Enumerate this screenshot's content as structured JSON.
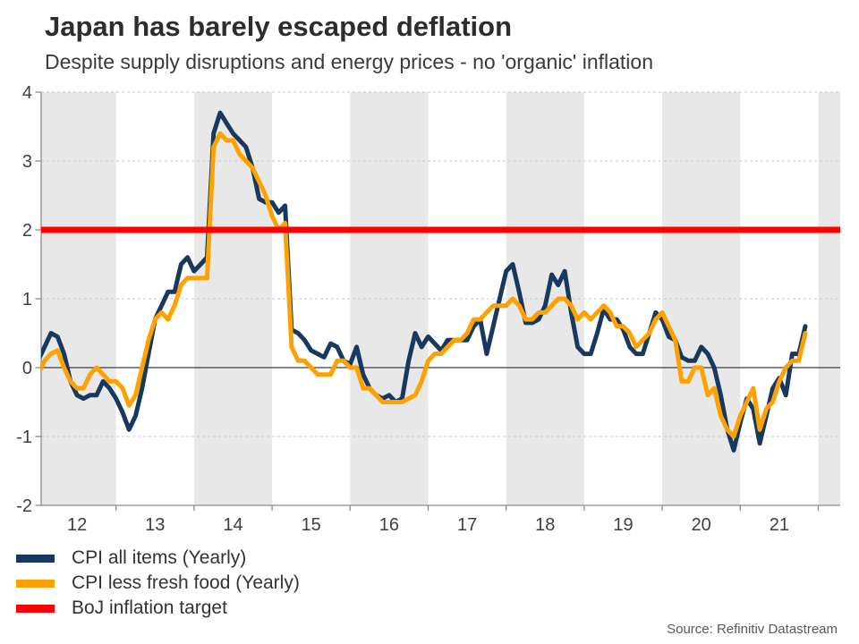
{
  "header": {
    "title": "Japan has barely escaped deflation",
    "subtitle": "Despite supply disruptions and energy prices - no 'organic' inflation"
  },
  "source": "Source: Refinitiv Datastream",
  "legend": [
    {
      "label": "CPI all items (Yearly)",
      "color": "#17395f"
    },
    {
      "label": "CPI less fresh food (Yearly)",
      "color": "#ffa200"
    },
    {
      "label": "BoJ inflation target",
      "color": "#fe0000"
    }
  ],
  "colors": {
    "band": "#e8e8e8",
    "gridline": "#c9c9c9",
    "zero_line": "#3d3d3d",
    "axis": "#8c8c8c",
    "tick_label": "#3f3f3f"
  },
  "chart_data": {
    "type": "line",
    "title": "Japan has barely escaped deflation",
    "subtitle": "Despite supply disruptions and energy prices - no 'organic' inflation",
    "x_unit": "monthly",
    "x_start": "2012-01",
    "x_end": "2021-11",
    "x_tick_labels": [
      "12",
      "13",
      "14",
      "15",
      "16",
      "17",
      "18",
      "19",
      "20",
      "21"
    ],
    "y_ticks": [
      4,
      3,
      2,
      1,
      0,
      -1,
      -2
    ],
    "ylim": [
      -2,
      4
    ],
    "grid": "dashed-horizontal",
    "legend_position": "bottom-left",
    "shaded_year_bands": [
      12,
      14,
      16,
      18,
      20,
      22
    ],
    "target_line": {
      "label": "BoJ inflation target",
      "value": 2,
      "color": "#fe0000"
    },
    "series": [
      {
        "name": "CPI all items (Yearly)",
        "color": "#17395f",
        "values": [
          0.1,
          0.3,
          0.5,
          0.45,
          0.2,
          -0.2,
          -0.4,
          -0.45,
          -0.4,
          -0.4,
          -0.2,
          -0.3,
          -0.45,
          -0.65,
          -0.9,
          -0.7,
          -0.3,
          0.2,
          0.7,
          0.9,
          1.1,
          1.1,
          1.5,
          1.6,
          1.4,
          1.5,
          1.6,
          3.4,
          3.7,
          3.55,
          3.4,
          3.3,
          3.2,
          2.9,
          2.45,
          2.4,
          2.4,
          2.25,
          2.35,
          0.55,
          0.5,
          0.4,
          0.25,
          0.2,
          0.15,
          0.35,
          0.3,
          0.1,
          0.05,
          0.3,
          -0.1,
          -0.3,
          -0.4,
          -0.45,
          -0.4,
          -0.5,
          -0.45,
          0.1,
          0.5,
          0.3,
          0.45,
          0.35,
          0.25,
          0.4,
          0.4,
          0.4,
          0.4,
          0.6,
          0.7,
          0.2,
          0.6,
          1.0,
          1.4,
          1.5,
          1.1,
          0.65,
          0.65,
          0.7,
          0.9,
          1.35,
          1.2,
          1.4,
          0.8,
          0.3,
          0.2,
          0.2,
          0.5,
          0.85,
          0.7,
          0.7,
          0.55,
          0.3,
          0.2,
          0.2,
          0.5,
          0.8,
          0.7,
          0.45,
          0.4,
          0.15,
          0.1,
          0.1,
          0.3,
          0.2,
          0.0,
          -0.4,
          -0.9,
          -1.2,
          -0.8,
          -0.45,
          -0.6,
          -1.1,
          -0.7,
          -0.3,
          -0.15,
          -0.4,
          0.2,
          0.2,
          0.6
        ]
      },
      {
        "name": "CPI less fresh food (Yearly)",
        "color": "#ffa200",
        "values": [
          -0.1,
          0.1,
          0.2,
          0.25,
          0.0,
          -0.2,
          -0.3,
          -0.3,
          -0.1,
          0.0,
          -0.1,
          -0.2,
          -0.2,
          -0.3,
          -0.55,
          -0.4,
          0.0,
          0.4,
          0.7,
          0.8,
          0.7,
          0.9,
          1.2,
          1.3,
          1.3,
          1.3,
          1.3,
          3.2,
          3.4,
          3.3,
          3.3,
          3.1,
          3.0,
          2.9,
          2.7,
          2.5,
          2.2,
          2.0,
          2.1,
          0.3,
          0.1,
          0.1,
          0.0,
          -0.1,
          -0.1,
          -0.1,
          0.1,
          0.1,
          0.0,
          0.0,
          -0.3,
          -0.3,
          -0.4,
          -0.5,
          -0.5,
          -0.5,
          -0.5,
          -0.45,
          -0.4,
          -0.2,
          0.1,
          0.2,
          0.2,
          0.3,
          0.4,
          0.4,
          0.5,
          0.7,
          0.7,
          0.8,
          0.9,
          0.9,
          0.9,
          1.0,
          0.9,
          0.7,
          0.7,
          0.8,
          0.8,
          0.9,
          1.0,
          1.0,
          0.9,
          0.7,
          0.8,
          0.7,
          0.8,
          0.9,
          0.8,
          0.6,
          0.6,
          0.5,
          0.3,
          0.4,
          0.5,
          0.7,
          0.8,
          0.6,
          0.4,
          -0.2,
          -0.2,
          0.0,
          0.0,
          -0.4,
          -0.3,
          -0.7,
          -0.9,
          -1.0,
          -0.7,
          -0.5,
          -0.3,
          -0.9,
          -0.6,
          -0.5,
          -0.2,
          0.0,
          0.1,
          0.1,
          0.5
        ]
      }
    ]
  }
}
